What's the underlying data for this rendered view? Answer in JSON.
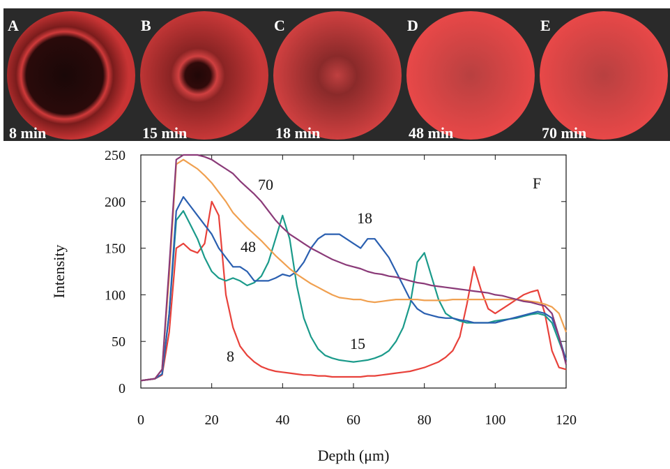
{
  "panels": [
    {
      "letter": "A",
      "time": "8 min"
    },
    {
      "letter": "B",
      "time": "15 min"
    },
    {
      "letter": "C",
      "time": "18 min"
    },
    {
      "letter": "D",
      "time": "48 min"
    },
    {
      "letter": "E",
      "time": "70 min"
    }
  ],
  "chart_data": {
    "type": "line",
    "annotation": "F",
    "x_label": "Depth (μm)",
    "y_label": "Intensity",
    "xlim": [
      0,
      120
    ],
    "ylim": [
      0,
      250
    ],
    "xticks": [
      0,
      20,
      40,
      60,
      80,
      100,
      120
    ],
    "yticks": [
      0,
      50,
      100,
      150,
      200,
      250
    ],
    "x": [
      0,
      2,
      4,
      6,
      8,
      10,
      12,
      14,
      16,
      18,
      20,
      22,
      24,
      26,
      28,
      30,
      32,
      34,
      36,
      38,
      40,
      42,
      44,
      46,
      48,
      50,
      52,
      54,
      56,
      58,
      60,
      62,
      64,
      66,
      68,
      70,
      72,
      74,
      76,
      78,
      80,
      82,
      84,
      86,
      88,
      90,
      92,
      94,
      96,
      98,
      100,
      102,
      104,
      106,
      108,
      110,
      112,
      114,
      116,
      118,
      120
    ],
    "series": [
      {
        "name": "8",
        "color": "#e8413a",
        "values": [
          8,
          9,
          10,
          14,
          60,
          150,
          155,
          148,
          145,
          155,
          200,
          185,
          100,
          65,
          45,
          35,
          28,
          23,
          20,
          18,
          17,
          16,
          15,
          14,
          14,
          13,
          13,
          12,
          12,
          12,
          12,
          12,
          13,
          13,
          14,
          15,
          16,
          17,
          18,
          20,
          22,
          25,
          28,
          33,
          40,
          55,
          90,
          130,
          105,
          85,
          80,
          85,
          90,
          95,
          100,
          103,
          105,
          80,
          40,
          22,
          20
        ]
      },
      {
        "name": "15",
        "color": "#1a9a8a",
        "values": [
          8,
          9,
          10,
          15,
          80,
          180,
          190,
          175,
          160,
          140,
          125,
          118,
          115,
          118,
          115,
          110,
          113,
          120,
          135,
          160,
          185,
          160,
          110,
          75,
          55,
          42,
          35,
          32,
          30,
          29,
          28,
          29,
          30,
          32,
          35,
          40,
          50,
          65,
          90,
          135,
          145,
          120,
          95,
          80,
          75,
          72,
          70,
          70,
          70,
          70,
          72,
          73,
          74,
          75,
          77,
          79,
          80,
          78,
          70,
          50,
          30
        ]
      },
      {
        "name": "18",
        "color": "#2a5fb0",
        "values": [
          8,
          9,
          10,
          15,
          80,
          190,
          205,
          195,
          185,
          175,
          165,
          150,
          140,
          130,
          130,
          125,
          115,
          115,
          115,
          118,
          122,
          120,
          125,
          135,
          150,
          160,
          165,
          165,
          165,
          160,
          155,
          150,
          160,
          160,
          150,
          140,
          125,
          110,
          95,
          85,
          80,
          78,
          76,
          75,
          75,
          73,
          72,
          70,
          70,
          70,
          70,
          72,
          74,
          76,
          78,
          80,
          82,
          80,
          75,
          55,
          30
        ]
      },
      {
        "name": "48",
        "color": "#f0a050",
        "values": [
          8,
          9,
          10,
          20,
          120,
          240,
          245,
          240,
          235,
          228,
          220,
          210,
          200,
          188,
          180,
          172,
          165,
          158,
          150,
          142,
          135,
          128,
          122,
          117,
          112,
          108,
          104,
          100,
          97,
          96,
          95,
          95,
          93,
          92,
          93,
          94,
          95,
          95,
          95,
          95,
          94,
          94,
          94,
          94,
          95,
          95,
          95,
          95,
          95,
          95,
          95,
          95,
          95,
          95,
          94,
          93,
          92,
          90,
          87,
          80,
          60
        ]
      },
      {
        "name": "70",
        "color": "#8a3a78",
        "values": [
          8,
          9,
          10,
          20,
          130,
          245,
          250,
          250,
          250,
          248,
          245,
          240,
          235,
          230,
          222,
          215,
          208,
          200,
          190,
          180,
          172,
          165,
          160,
          155,
          150,
          146,
          142,
          138,
          135,
          132,
          130,
          128,
          125,
          123,
          122,
          120,
          119,
          117,
          115,
          113,
          112,
          110,
          109,
          108,
          107,
          106,
          105,
          104,
          103,
          102,
          100,
          99,
          97,
          95,
          93,
          92,
          90,
          88,
          80,
          55,
          25
        ]
      }
    ]
  }
}
